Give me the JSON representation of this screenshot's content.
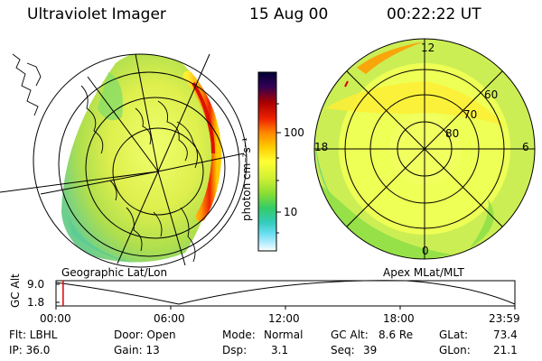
{
  "header": {
    "instrument": "Ultraviolet Imager",
    "date": "15 Aug 00",
    "time": "00:22:22 UT"
  },
  "maps": {
    "left_label": "Geographic Lat/Lon",
    "right_label": "Apex MLat/MLT",
    "right_mlt_labels": {
      "top": "12",
      "left": "18",
      "right": "6",
      "bottom": "0"
    },
    "right_lat_labels": [
      "60",
      "70",
      "80"
    ]
  },
  "colorbar": {
    "unit": "photon cm⁻²s⁻¹",
    "ticks": [
      "100",
      "10"
    ],
    "colors": [
      "#000033",
      "#330055",
      "#aa0000",
      "#ee2200",
      "#ff8800",
      "#ffcc00",
      "#ffff33",
      "#ccee33",
      "#88dd33",
      "#33cc66",
      "#33ccbb",
      "#66ddee",
      "#bbeeff",
      "#ffffff"
    ]
  },
  "timeline": {
    "axis_label": "GC Alt",
    "y_ticks": [
      "9.0",
      "1.8"
    ],
    "x_ticks": [
      "00:00",
      "06:00",
      "12:00",
      "18:00",
      "23:59"
    ],
    "current_fraction": 0.0155,
    "marker_color": "#dd0000"
  },
  "info": {
    "filter": "Flt: LBHL",
    "ip": "IP: 36.0",
    "door": "Door: Open",
    "gain": "Gain: 13",
    "mode_label": "Mode:",
    "mode_value": "Normal",
    "dsp_label": "Dsp:",
    "dsp_value": "3.1",
    "gcalt_label": "GC Alt:",
    "gcalt_value": "8.6 Re",
    "seq_label": "Seq:",
    "seq_value": "39",
    "glat_label": "GLat:",
    "glat_value": "73.4",
    "glon_label": "GLon:",
    "glon_value": "21.1"
  }
}
